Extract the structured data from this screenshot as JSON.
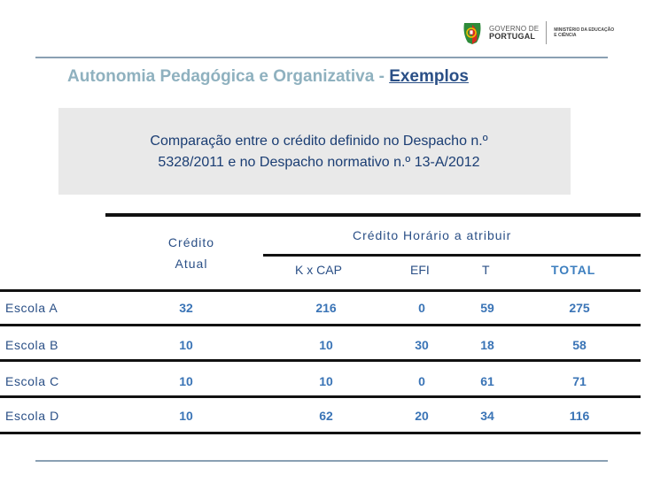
{
  "header": {
    "gov_line1": "GOVERNO DE",
    "gov_line2": "PORTUGAL",
    "ministry_line1": "MINISTÉRIO DA EDUCAÇÃO",
    "ministry_line2": "E CIÊNCIA"
  },
  "slide": {
    "title_main": "Autonomia Pedagógica e Organizativa - ",
    "title_emph": "Exemplos",
    "box_line1": "Comparação entre o crédito definido no Despacho n.º",
    "box_line2": "5328/2011 e no Despacho normativo n.º 13-A/2012"
  },
  "table": {
    "col_credito_1": "Crédito",
    "col_credito_2": "Atual",
    "col_horario": "Crédito Horário a atribuir",
    "sub_kxcap": "K x CAP",
    "sub_efi": "EFI",
    "sub_t": "T",
    "sub_total": "TOTAL",
    "rows": [
      {
        "label": "Escola A",
        "credito": "32",
        "kxcap": "216",
        "efi": "0",
        "t": "59",
        "total": "275"
      },
      {
        "label": "Escola B",
        "credito": "10",
        "kxcap": "10",
        "efi": "30",
        "t": "18",
        "total": "58"
      },
      {
        "label": "Escola C",
        "credito": "10",
        "kxcap": "10",
        "efi": "0",
        "t": "61",
        "total": "71"
      },
      {
        "label": "Escola D",
        "credito": "10",
        "kxcap": "62",
        "efi": "20",
        "t": "34",
        "total": "116"
      }
    ]
  },
  "colors": {
    "title": "#8fb1bf",
    "title_emphasis": "#2a4f86",
    "table_text": "#2a4f86",
    "values": "#3a74b6",
    "box_bg": "#e9e9e9"
  }
}
